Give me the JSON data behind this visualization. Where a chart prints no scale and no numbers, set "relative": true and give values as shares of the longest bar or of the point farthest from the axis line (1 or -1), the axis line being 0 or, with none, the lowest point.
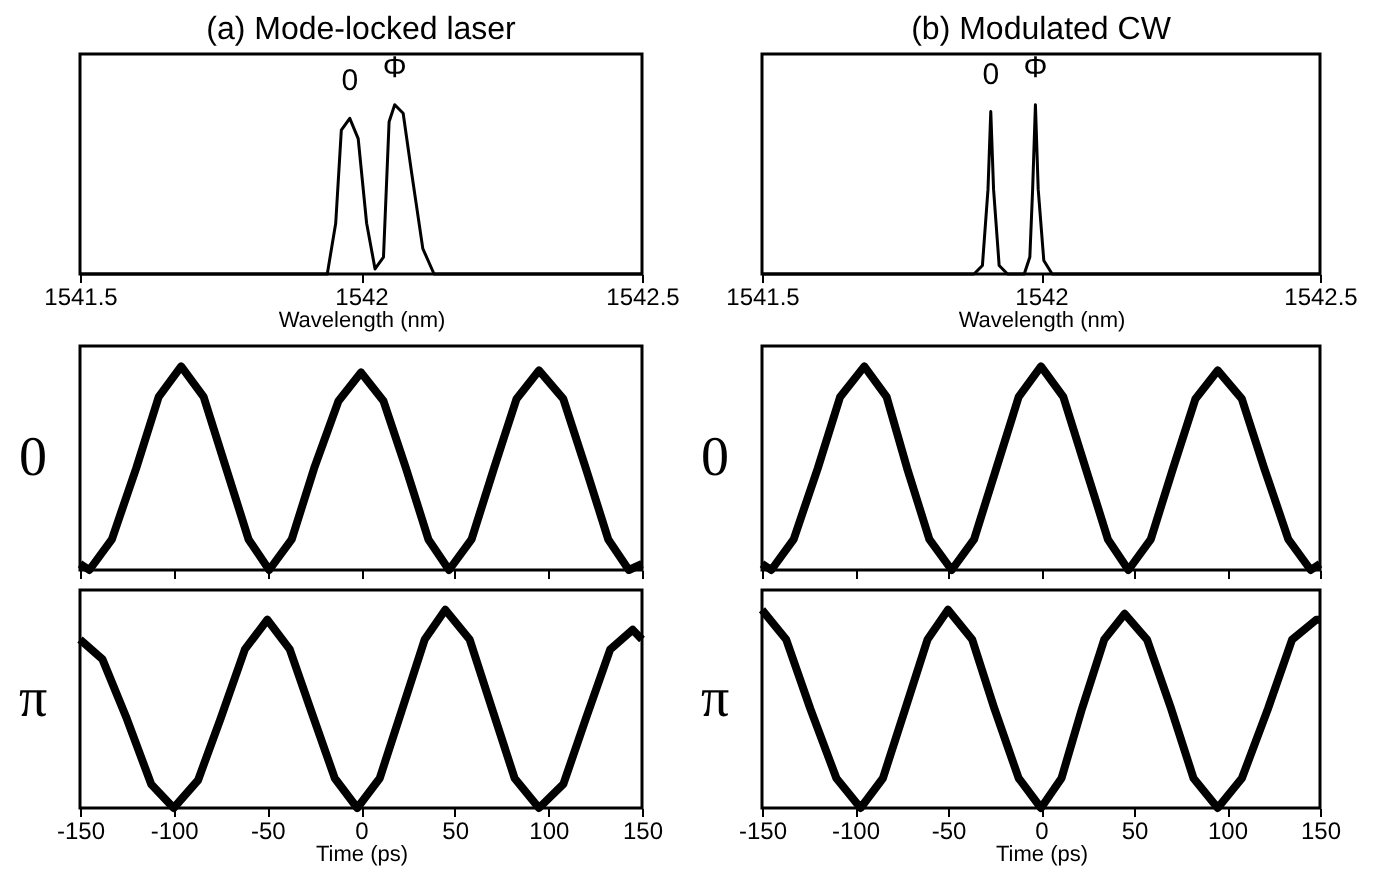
{
  "chart_data": [
    {
      "type": "line",
      "title": "(a) Mode-locked laser",
      "xlabel": "Wavelength (nm)",
      "relative": true,
      "xlim": [
        1541.5,
        1542.5
      ],
      "xticks": [
        1541.5,
        1542,
        1542.5
      ],
      "tick_labels": "x",
      "grid": false,
      "line_style": "solid",
      "annotations": [
        {
          "text": "0",
          "x": 1541.98,
          "y": 0.92
        },
        {
          "text": "Φ",
          "x": 1542.06,
          "y": 1
        }
      ],
      "series": [
        {
          "color": "#000000",
          "x": [
            1541.5,
            1541.9,
            1541.94,
            1541.955,
            1541.965,
            1541.98,
            1541.995,
            1542.01,
            1542.025,
            1542.04,
            1542.05,
            1542.06,
            1542.075,
            1542.09,
            1542.11,
            1542.13,
            1542.5
          ],
          "values": [
            0,
            0,
            0,
            0.3,
            0.85,
            0.92,
            0.8,
            0.3,
            0.03,
            0.1,
            0.9,
            1,
            0.95,
            0.6,
            0.15,
            0,
            0
          ]
        }
      ]
    },
    {
      "type": "line",
      "title": "(b) Modulated CW",
      "xlabel": "Wavelength (nm)",
      "relative": true,
      "xlim": [
        1541.5,
        1542.5
      ],
      "xticks": [
        1541.5,
        1542,
        1542.5
      ],
      "tick_labels": "x",
      "grid": false,
      "line_style": "solid",
      "annotations": [
        {
          "text": "0",
          "x": 1541.91,
          "y": 0.96
        },
        {
          "text": "Φ",
          "x": 1541.99,
          "y": 1
        }
      ],
      "series": [
        {
          "color": "#000000",
          "x": [
            1541.5,
            1541.88,
            1541.895,
            1541.905,
            1541.91,
            1541.915,
            1541.925,
            1541.94,
            1541.97,
            1541.98,
            1541.985,
            1541.99,
            1541.995,
            1542.005,
            1542.02,
            1542.5
          ],
          "values": [
            0,
            0,
            0.05,
            0.5,
            0.96,
            0.5,
            0.05,
            0,
            0,
            0.1,
            0.5,
            1,
            0.5,
            0.08,
            0,
            0
          ]
        }
      ]
    },
    {
      "type": "line",
      "ylabel": "0",
      "relative": true,
      "xlim": [
        -150,
        150
      ],
      "xticks": [
        -150,
        -100,
        -50,
        0,
        50,
        100,
        150
      ],
      "tick_labels": false,
      "grid": false,
      "line_style": "solid",
      "series": [
        {
          "color": "#000000",
          "x": [
            -150,
            -145,
            -133,
            -120,
            -108,
            -96,
            -84,
            -72,
            -60,
            -49,
            -37,
            -25,
            -12,
            0,
            12,
            24,
            36,
            47,
            59,
            71,
            83,
            95,
            108,
            120,
            132,
            143,
            150
          ],
          "values": [
            0.03,
            0,
            0.15,
            0.5,
            0.85,
            1,
            0.85,
            0.5,
            0.15,
            0,
            0.15,
            0.5,
            0.83,
            0.97,
            0.83,
            0.5,
            0.15,
            0,
            0.15,
            0.5,
            0.84,
            0.98,
            0.84,
            0.5,
            0.15,
            0,
            0.03
          ]
        }
      ]
    },
    {
      "type": "line",
      "ylabel": "0",
      "relative": true,
      "xlim": [
        -150,
        150
      ],
      "xticks": [
        -150,
        -100,
        -50,
        0,
        50,
        100,
        150
      ],
      "tick_labels": false,
      "grid": false,
      "line_style": "solid",
      "series": [
        {
          "color": "#000000",
          "x": [
            -150,
            -145,
            -133,
            -120,
            -108,
            -95,
            -83,
            -72,
            -60,
            -48,
            -36,
            -24,
            -12,
            0,
            12,
            24,
            36,
            47,
            59,
            71,
            83,
            95,
            108,
            120,
            133,
            145,
            150
          ],
          "values": [
            0.03,
            0,
            0.15,
            0.5,
            0.85,
            1,
            0.85,
            0.5,
            0.15,
            0,
            0.15,
            0.5,
            0.85,
            1,
            0.85,
            0.5,
            0.15,
            0,
            0.15,
            0.5,
            0.84,
            0.98,
            0.84,
            0.5,
            0.15,
            0,
            0.03
          ]
        }
      ]
    },
    {
      "type": "line",
      "ylabel": "π",
      "xlabel": "Time (ps)",
      "relative": true,
      "xlim": [
        -150,
        150
      ],
      "xticks": [
        -150,
        -100,
        -50,
        0,
        50,
        100,
        150
      ],
      "tick_labels": "x",
      "grid": false,
      "line_style": "solid",
      "series": [
        {
          "color": "#000000",
          "x": [
            -150,
            -138,
            -125,
            -112,
            -100,
            -87,
            -75,
            -62,
            -50,
            -38,
            -27,
            -14,
            -2,
            10,
            22,
            34,
            45,
            58,
            70,
            82,
            95,
            108,
            120,
            133,
            145,
            150
          ],
          "values": [
            0.85,
            0.75,
            0.45,
            0.12,
            0,
            0.14,
            0.45,
            0.8,
            0.95,
            0.8,
            0.5,
            0.15,
            0,
            0.15,
            0.5,
            0.85,
            1,
            0.85,
            0.5,
            0.15,
            0,
            0.12,
            0.45,
            0.8,
            0.9,
            0.85
          ]
        }
      ]
    },
    {
      "type": "line",
      "ylabel": "π",
      "xlabel": "Time (ps)",
      "relative": true,
      "xlim": [
        -150,
        150
      ],
      "xticks": [
        -150,
        -100,
        -50,
        0,
        50,
        100,
        150
      ],
      "tick_labels": "x",
      "grid": false,
      "line_style": "solid",
      "series": [
        {
          "color": "#000000",
          "x": [
            -150,
            -137,
            -124,
            -110,
            -97,
            -85,
            -73,
            -61,
            -50,
            -37,
            -25,
            -12,
            0,
            11,
            22,
            34,
            45,
            57,
            70,
            82,
            95,
            108,
            122,
            135,
            148,
            150
          ],
          "values": [
            1,
            0.85,
            0.5,
            0.15,
            0,
            0.15,
            0.5,
            0.85,
            1,
            0.85,
            0.5,
            0.15,
            0,
            0.15,
            0.5,
            0.85,
            0.98,
            0.85,
            0.5,
            0.15,
            0,
            0.15,
            0.5,
            0.85,
            0.95,
            0.95
          ]
        }
      ]
    }
  ]
}
